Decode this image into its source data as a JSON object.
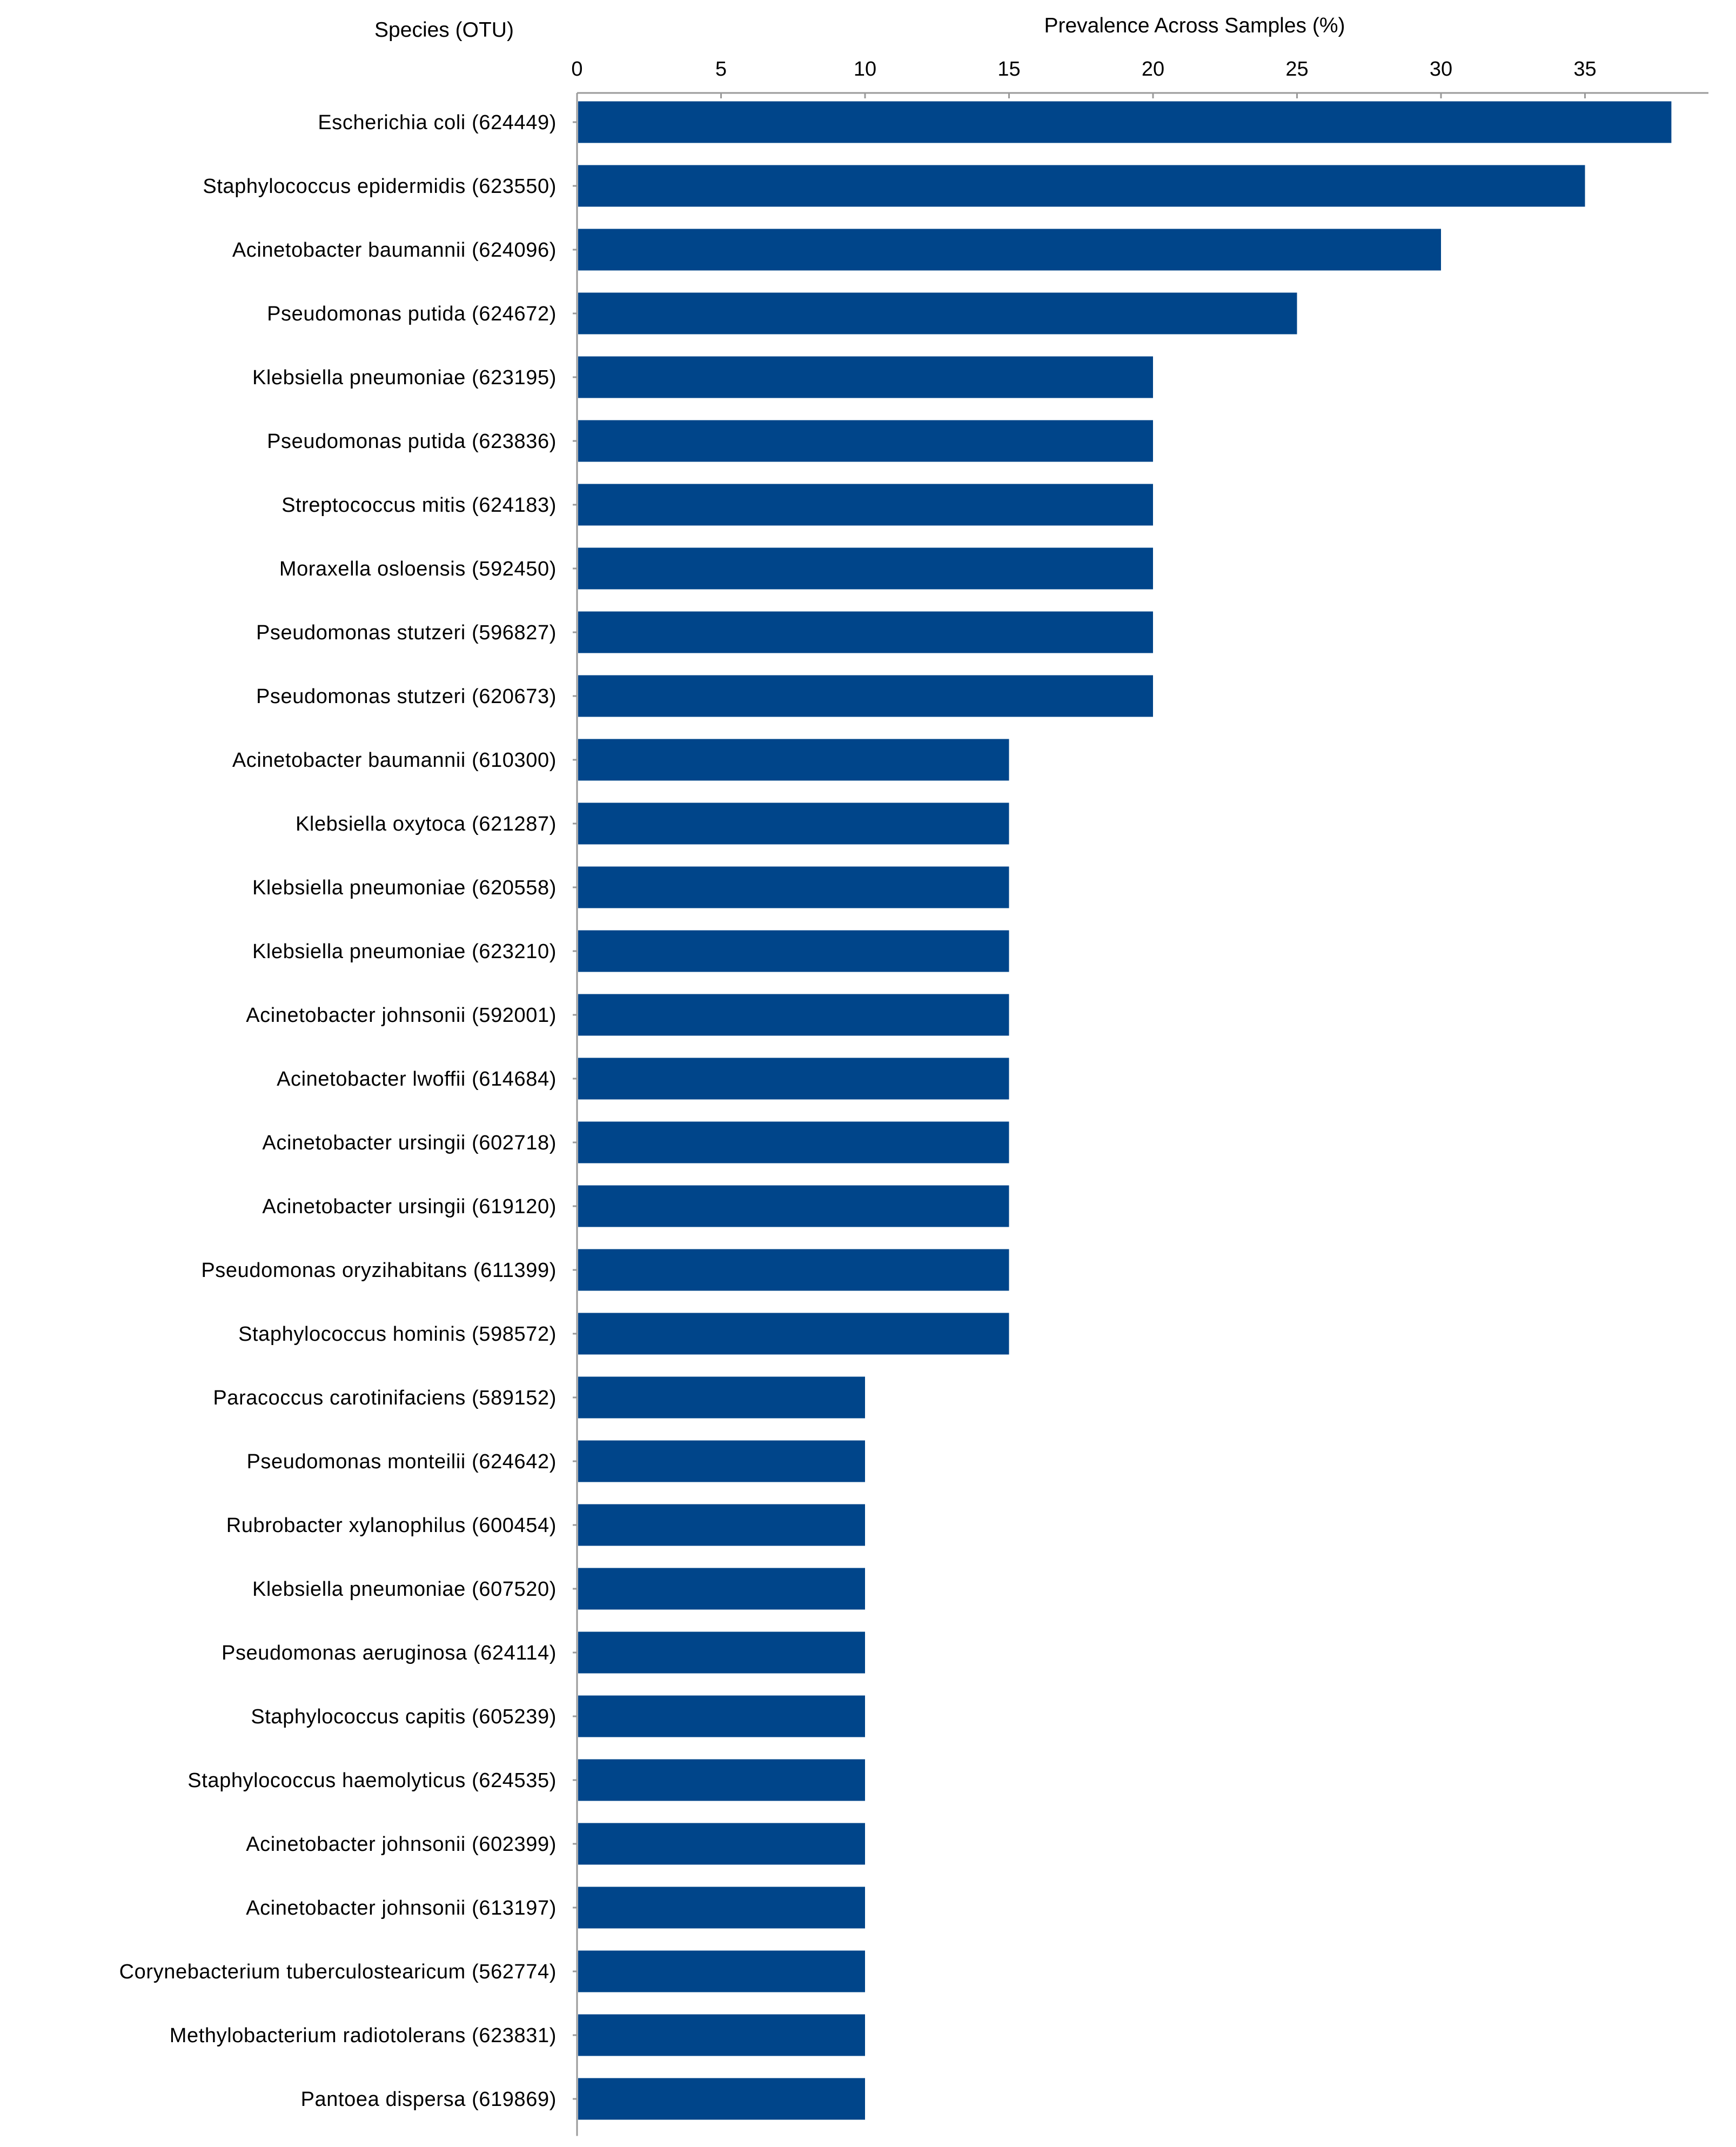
{
  "chart_data": {
    "type": "bar",
    "orientation": "horizontal",
    "title": "",
    "xlabel": "Prevalence  Across Samples (%)",
    "ylabel": "Species (OTU)",
    "xlim": [
      0,
      39
    ],
    "x_ticks": [
      0,
      5,
      10,
      15,
      20,
      25,
      30,
      35
    ],
    "x_tick_labels": [
      "0",
      "5",
      "10",
      "15",
      "20",
      "25",
      "30",
      "35"
    ],
    "axis_position": "top",
    "grid": false,
    "legend": "none",
    "bar_color": "#00458a",
    "categories": [
      "Escherichia coli (624449)",
      "Staphylococcus epidermidis (623550)",
      "Acinetobacter baumannii (624096)",
      "Pseudomonas putida (624672)",
      "Klebsiella pneumoniae (623195)",
      "Pseudomonas putida (623836)",
      "Streptococcus mitis (624183)",
      "Moraxella osloensis (592450)",
      "Pseudomonas stutzeri (596827)",
      "Pseudomonas stutzeri (620673)",
      "Acinetobacter baumannii (610300)",
      "Klebsiella oxytoca (621287)",
      "Klebsiella pneumoniae (620558)",
      "Klebsiella pneumoniae (623210)",
      "Acinetobacter johnsonii (592001)",
      "Acinetobacter lwoffii (614684)",
      "Acinetobacter ursingii (602718)",
      "Acinetobacter ursingii (619120)",
      "Pseudomonas oryzihabitans (611399)",
      "Staphylococcus hominis (598572)",
      "Paracoccus carotinifaciens (589152)",
      "Pseudomonas monteilii (624642)",
      "Rubrobacter xylanophilus (600454)",
      "Klebsiella pneumoniae (607520)",
      "Pseudomonas aeruginosa (624114)",
      "Staphylococcus capitis (605239)",
      "Staphylococcus haemolyticus (624535)",
      "Acinetobacter johnsonii (602399)",
      "Acinetobacter johnsonii (613197)",
      "Corynebacterium tuberculostearicum (562774)",
      "Methylobacterium radiotolerans (623831)",
      "Pantoea dispersa (619869)"
    ],
    "values": [
      38,
      35,
      30,
      25,
      20,
      20,
      20,
      20,
      20,
      20,
      15,
      15,
      15,
      15,
      15,
      15,
      15,
      15,
      15,
      15,
      10,
      10,
      10,
      10,
      10,
      10,
      10,
      10,
      10,
      10,
      10,
      10
    ]
  }
}
